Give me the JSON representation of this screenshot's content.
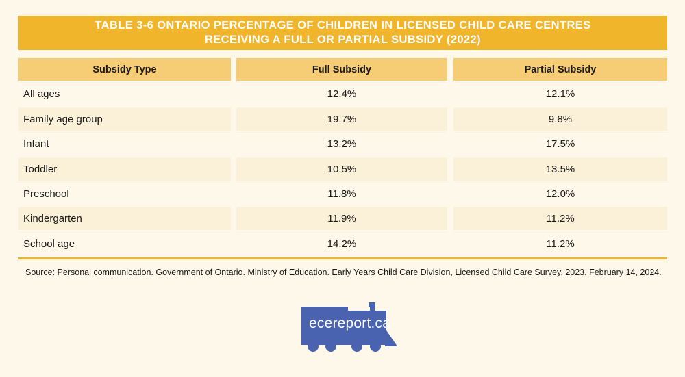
{
  "title": {
    "line1": "TABLE 3-6 ONTARIO PERCENTAGE OF CHILDREN IN LICENSED CHILD CARE CENTRES",
    "line2": "RECEIVING A FULL OR PARTIAL SUBSIDY (2022)"
  },
  "table": {
    "headers": [
      "Subsidy Type",
      "Full Subsidy",
      "Partial Subsidy"
    ],
    "rows": [
      [
        "All ages",
        "12.4%",
        "12.1%"
      ],
      [
        "Family age group",
        "19.7%",
        "9.8%"
      ],
      [
        "Infant",
        "13.2%",
        "17.5%"
      ],
      [
        "Toddler",
        "10.5%",
        "13.5%"
      ],
      [
        "Preschool",
        "11.8%",
        "12.0%"
      ],
      [
        "Kindergarten",
        "11.9%",
        "11.2%"
      ],
      [
        "School age",
        "14.2%",
        "11.2%"
      ]
    ]
  },
  "source": "Source: Personal communication. Government of Ontario. Ministry of Education. Early Years Child Care Division, Licensed Child Care Survey, 2023. February 14, 2024.",
  "logo": {
    "text": "ecereport.ca",
    "icon": "train-icon",
    "color": "#4a63b0"
  },
  "colors": {
    "accent": "#f0b52b",
    "header_bg": "#f6cc74",
    "page_bg": "#fdf8ea",
    "row_alt_bg": "#fbf1d8"
  }
}
